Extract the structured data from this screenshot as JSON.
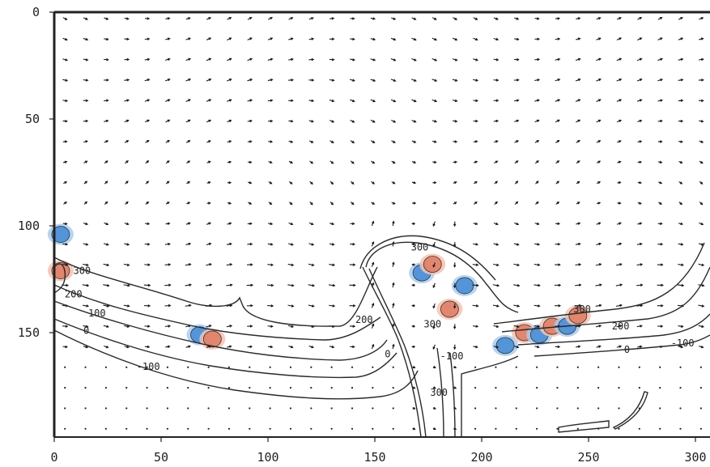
{
  "chart_data": {
    "type": "contour-vector",
    "title": "",
    "xlabel": "",
    "ylabel": "",
    "xlim": [
      0,
      305
    ],
    "ylim": [
      0,
      197
    ],
    "y_inverted": true,
    "x_ticks": [
      0,
      50,
      100,
      150,
      200,
      250,
      300
    ],
    "y_ticks": [
      0,
      50,
      100,
      150
    ],
    "x_tick_labels": [
      "0",
      "50",
      "100",
      "150",
      "200",
      "250",
      "300"
    ],
    "y_tick_labels": [
      "0",
      "50",
      "100",
      "150"
    ],
    "contour_levels": [
      -100,
      0,
      100,
      200,
      300
    ],
    "contour_labels": [
      {
        "text": "300",
        "x": 13,
        "y": 121
      },
      {
        "text": "200",
        "x": 9,
        "y": 132
      },
      {
        "text": "100",
        "x": 20,
        "y": 141
      },
      {
        "text": "0",
        "x": 15,
        "y": 149
      },
      {
        "text": "-100",
        "x": 44,
        "y": 166
      },
      {
        "text": "200",
        "x": 145,
        "y": 144
      },
      {
        "text": "0",
        "x": 156,
        "y": 160
      },
      {
        "text": "300",
        "x": 171,
        "y": 110
      },
      {
        "text": "300",
        "x": 177,
        "y": 146
      },
      {
        "text": "-100",
        "x": 186,
        "y": 161
      },
      {
        "text": "300",
        "x": 180,
        "y": 178
      },
      {
        "text": "300",
        "x": 247,
        "y": 139
      },
      {
        "text": "200",
        "x": 265,
        "y": 147
      },
      {
        "text": "0",
        "x": 268,
        "y": 158
      },
      {
        "text": "-100",
        "x": 294,
        "y": 155
      }
    ],
    "vorticity_patches": [
      {
        "sign": "negative",
        "x": 3,
        "y": 104
      },
      {
        "sign": "positive",
        "x": 3,
        "y": 121
      },
      {
        "sign": "negative",
        "x": 68,
        "y": 151
      },
      {
        "sign": "positive",
        "x": 74,
        "y": 153
      },
      {
        "sign": "negative",
        "x": 172,
        "y": 122
      },
      {
        "sign": "positive",
        "x": 177,
        "y": 118
      },
      {
        "sign": "negative",
        "x": 192,
        "y": 128
      },
      {
        "sign": "positive",
        "x": 185,
        "y": 139
      },
      {
        "sign": "negative",
        "x": 211,
        "y": 156
      },
      {
        "sign": "positive",
        "x": 220,
        "y": 150
      },
      {
        "sign": "negative",
        "x": 227,
        "y": 151
      },
      {
        "sign": "positive",
        "x": 233,
        "y": 147
      },
      {
        "sign": "negative",
        "x": 240,
        "y": 147
      },
      {
        "sign": "positive",
        "x": 245,
        "y": 142
      }
    ],
    "colors": {
      "positive": "#e2826a",
      "positive_light": "#f4c3b2",
      "negative": "#4f90d6",
      "negative_light": "#a9cdef",
      "contour": "#2a2a2a",
      "frame": "#222222"
    },
    "grid": false
  }
}
